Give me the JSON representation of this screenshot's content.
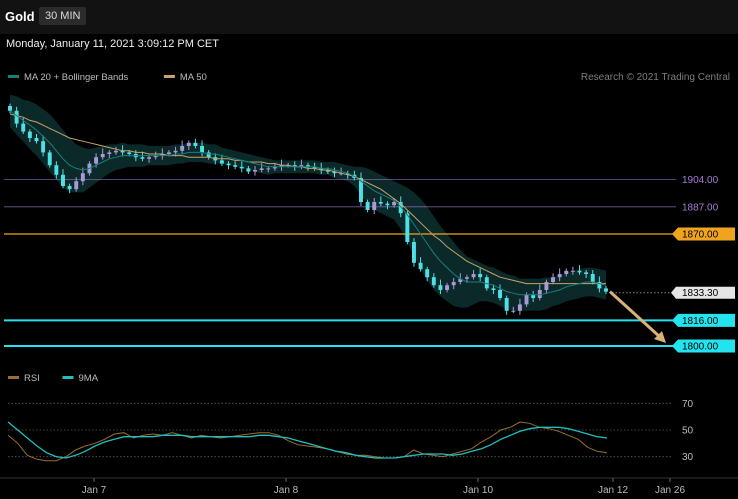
{
  "header": {
    "instrument": "Gold",
    "interval": "30 MIN"
  },
  "datetime": "Monday, January 11, 2021 3:09:12 PM CET",
  "colors": {
    "up_candle": "#a79ad6",
    "down_candle": "#4fe0e6",
    "bollinger_fill": "#0c2b2b",
    "ma20": "#15807f",
    "ma50": "#c7a36c",
    "resistance": "#a77dd6",
    "pivot": "#f0a41e",
    "support": "#22e3ee",
    "current": "#d9d9d9",
    "forecast_arrow": "#d9b27a",
    "rsi": "#9b6e2f",
    "rsi_ma": "#1fbfbf"
  },
  "chart_data": [
    {
      "type": "candlestick",
      "legend": [
        {
          "label": "MA 20 + Bollinger Bands",
          "color": "#15807f"
        },
        {
          "label": "MA 50",
          "color": "#c7a36c"
        }
      ],
      "legend_placement": "top-left",
      "attribution": "Research © 2021 Trading Central",
      "y_axis_position": "right",
      "ylim": [
        1790,
        1960
      ],
      "levels": [
        {
          "value": 1904.0,
          "label": "1904.00",
          "kind": "resistance"
        },
        {
          "value": 1887.0,
          "label": "1887.00",
          "kind": "resistance"
        },
        {
          "value": 1870.0,
          "label": "1870.00",
          "kind": "pivot"
        },
        {
          "value": 1833.3,
          "label": "1833.30",
          "kind": "current"
        },
        {
          "value": 1816.0,
          "label": "1816.00",
          "kind": "support"
        },
        {
          "value": 1800.0,
          "label": "1800.00",
          "kind": "support"
        }
      ],
      "x_ticks": [
        "Jan 7",
        "Jan 8",
        "Jan 10",
        "Jan 12",
        "Jan 26"
      ],
      "close": [
        1947,
        1939,
        1934,
        1930,
        1928,
        1921,
        1913,
        1907,
        1900,
        1898,
        1903,
        1908,
        1914,
        1918,
        1920,
        1921,
        1922,
        1921,
        1920,
        1918,
        1917,
        1918,
        1919,
        1920,
        1921,
        1922,
        1925,
        1927,
        1925,
        1921,
        1918,
        1916,
        1914,
        1913,
        1912,
        1911,
        1909,
        1910,
        1911,
        1911,
        1912,
        1913,
        1913,
        1912,
        1913,
        1912,
        1911,
        1910,
        1909,
        1908,
        1908,
        1907,
        1905,
        1890,
        1885,
        1890,
        1889,
        1888,
        1890,
        1883,
        1865,
        1852,
        1848,
        1843,
        1838,
        1835,
        1838,
        1840,
        1842,
        1843,
        1845,
        1843,
        1836,
        1835,
        1830,
        1822,
        1822,
        1826,
        1832,
        1830,
        1835,
        1840,
        1843,
        1845,
        1847,
        1847,
        1846,
        1845,
        1840,
        1836,
        1834
      ],
      "ma20": [
        1947,
        1944,
        1941,
        1938,
        1935,
        1931,
        1927,
        1922,
        1917,
        1913,
        1911,
        1910,
        1911,
        1913,
        1915,
        1917,
        1918,
        1919,
        1919,
        1919,
        1919,
        1919,
        1919,
        1919,
        1919,
        1920,
        1920,
        1921,
        1921,
        1921,
        1920,
        1920,
        1919,
        1918,
        1917,
        1916,
        1915,
        1914,
        1913,
        1912,
        1912,
        1912,
        1912,
        1912,
        1912,
        1912,
        1912,
        1911,
        1911,
        1910,
        1909,
        1908,
        1906,
        1903,
        1900,
        1897,
        1895,
        1893,
        1891,
        1887,
        1882,
        1876,
        1870,
        1864,
        1858,
        1853,
        1849,
        1845,
        1842,
        1840,
        1840,
        1840,
        1839,
        1838,
        1836,
        1834,
        1833,
        1832,
        1832,
        1832,
        1832,
        1833,
        1834,
        1835,
        1837,
        1838,
        1839,
        1840,
        1840,
        1839,
        1838
      ],
      "ma50": [
        1945,
        1944,
        1943,
        1941,
        1940,
        1938,
        1936,
        1934,
        1932,
        1930,
        1929,
        1928,
        1927,
        1926,
        1925,
        1924,
        1923,
        1922,
        1922,
        1921,
        1921,
        1920,
        1920,
        1920,
        1919,
        1919,
        1919,
        1918,
        1918,
        1918,
        1918,
        1917,
        1917,
        1917,
        1916,
        1916,
        1915,
        1915,
        1915,
        1914,
        1914,
        1913,
        1913,
        1912,
        1912,
        1911,
        1911,
        1910,
        1910,
        1909,
        1908,
        1907,
        1906,
        1904,
        1902,
        1900,
        1898,
        1895,
        1892,
        1889,
        1885,
        1881,
        1877,
        1873,
        1869,
        1866,
        1862,
        1859,
        1856,
        1853,
        1851,
        1849,
        1847,
        1845,
        1843,
        1842,
        1841,
        1840,
        1839,
        1839,
        1839,
        1839,
        1839,
        1839,
        1839,
        1839,
        1839,
        1839,
        1839,
        1839,
        1839
      ],
      "band_width": [
        10,
        12,
        13,
        15,
        16,
        17,
        18,
        18,
        18,
        17,
        15,
        14,
        12,
        11,
        10,
        9,
        8,
        8,
        7,
        7,
        7,
        6,
        6,
        6,
        6,
        6,
        6,
        6,
        6,
        6,
        6,
        6,
        5,
        5,
        5,
        5,
        5,
        5,
        5,
        5,
        4,
        4,
        4,
        4,
        4,
        4,
        4,
        4,
        4,
        5,
        5,
        5,
        6,
        9,
        11,
        12,
        12,
        12,
        12,
        14,
        17,
        20,
        22,
        23,
        23,
        22,
        21,
        20,
        18,
        16,
        14,
        12,
        11,
        11,
        11,
        11,
        11,
        10,
        10,
        10,
        10,
        10,
        9,
        9,
        9,
        9,
        9,
        9,
        9,
        9,
        9
      ]
    },
    {
      "type": "line",
      "legend": [
        {
          "label": "RSI",
          "color": "#9b6e2f"
        },
        {
          "label": "9MA",
          "color": "#1fbfbf"
        }
      ],
      "legend_placement": "top-left",
      "ylim": [
        20,
        80
      ],
      "y_ticks": [
        {
          "value": 70,
          "label": "70"
        },
        {
          "value": 50,
          "label": "50"
        },
        {
          "value": 30,
          "label": "30"
        }
      ],
      "rsi": [
        46,
        40,
        31,
        28,
        27,
        27,
        30,
        35,
        38,
        40,
        43,
        47,
        48,
        44,
        46,
        47,
        46,
        48,
        46,
        44,
        46,
        45,
        44,
        45,
        46,
        47,
        48,
        48,
        46,
        42,
        39,
        38,
        37,
        36,
        34,
        32,
        31,
        31,
        30,
        29,
        29,
        30,
        35,
        32,
        31,
        30,
        32,
        34,
        36,
        41,
        45,
        50,
        52,
        56,
        55,
        52,
        51,
        49,
        46,
        43,
        37,
        34,
        33
      ],
      "rsi_ma": [
        56,
        50,
        44,
        38,
        33,
        30,
        29,
        31,
        34,
        38,
        41,
        43,
        45,
        45,
        45,
        45,
        46,
        46,
        46,
        45,
        45,
        45,
        45,
        45,
        45,
        45,
        46,
        46,
        45,
        44,
        42,
        40,
        38,
        36,
        34,
        33,
        31,
        30,
        29,
        29,
        29,
        30,
        31,
        32,
        32,
        32,
        31,
        32,
        34,
        36,
        39,
        43,
        46,
        49,
        51,
        52,
        52,
        52,
        51,
        49,
        47,
        45,
        44
      ]
    }
  ]
}
